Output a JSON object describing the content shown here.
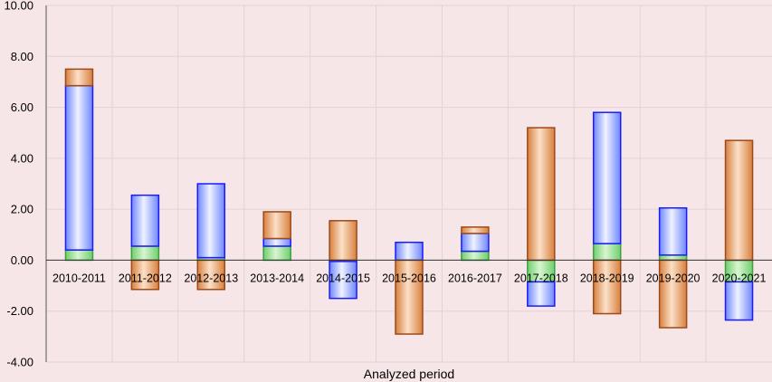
{
  "chart_data": {
    "type": "bar",
    "stacked": true,
    "title": "",
    "xlabel": "Analyzed period",
    "ylabel": "",
    "ylim": [
      -4,
      10
    ],
    "yticks": [
      "-4.00",
      "-2.00",
      "0.00",
      "2.00",
      "4.00",
      "6.00",
      "8.00",
      "10.00"
    ],
    "grid": true,
    "legend": "none",
    "categories": [
      "2010-2011",
      "2011-2012",
      "2012-2013",
      "2013-2014",
      "2014-2015",
      "2015-2016",
      "2016-2017",
      "2017-2018",
      "2018-2019",
      "2019-2020",
      "2020-2021"
    ],
    "series": [
      {
        "color_top": "#3f9f3f",
        "fill_light": "#d8f5d0",
        "fill_dark": "#6fcf6f",
        "values": [
          0.4,
          0.55,
          0.1,
          0.55,
          -0.05,
          0.0,
          0.35,
          -0.85,
          0.65,
          0.2,
          -0.85
        ]
      },
      {
        "color_top": "#1a1aff",
        "fill_light": "#eef2ff",
        "fill_dark": "#6f86ff",
        "values": [
          6.45,
          2.0,
          2.9,
          0.3,
          -1.45,
          0.7,
          0.7,
          -0.95,
          5.15,
          1.85,
          -1.5
        ]
      },
      {
        "color_top": "#9c4a1a",
        "fill_light": "#fbe0c8",
        "fill_dark": "#d8803e",
        "values": [
          0.65,
          -1.15,
          -1.15,
          1.05,
          1.55,
          -2.9,
          0.25,
          5.2,
          -2.1,
          -2.65,
          4.7
        ]
      }
    ]
  }
}
